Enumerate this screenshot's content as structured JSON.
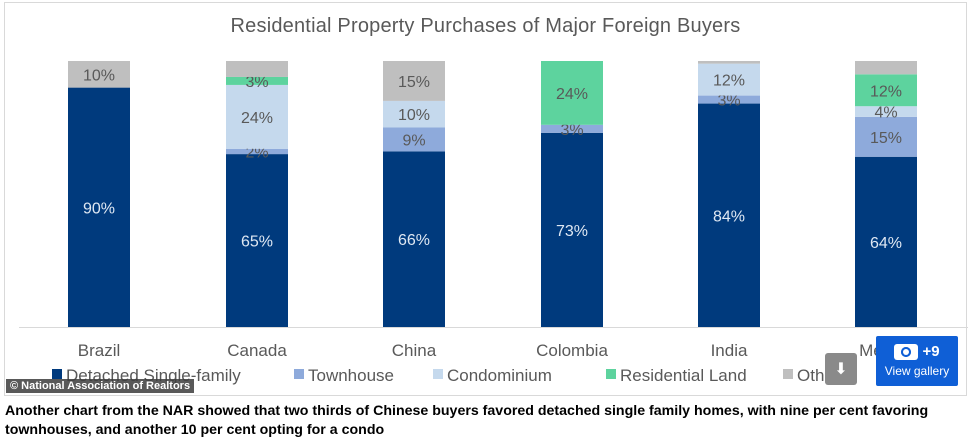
{
  "caption": "Another chart from the NAR showed that two thirds of Chinese buyers favored detached single family homes, with nine per cent favoring townhouses, and another 10 per cent opting for a condo",
  "credit": "© National Association of Realtors",
  "gallery": {
    "count": "+9",
    "label": "View gallery"
  },
  "icons": {
    "share": "share-icon",
    "camera": "camera-icon"
  },
  "chart_data": {
    "type": "bar",
    "stacked": true,
    "title": "Residential Property Purchases of Major Foreign Buyers",
    "xlabel": "",
    "ylabel": "",
    "ylim": [
      0,
      100
    ],
    "categories": [
      "Brazil",
      "Canada",
      "China",
      "Colombia",
      "India",
      "Mexico"
    ],
    "series": [
      {
        "name": "Detached Single-family",
        "color": "#003a7d",
        "values": [
          90,
          65,
          66,
          73,
          84,
          64
        ]
      },
      {
        "name": "Townhouse",
        "color": "#8eaadb",
        "values": [
          0,
          2,
          9,
          3,
          3,
          15
        ]
      },
      {
        "name": "Condominium",
        "color": "#c5d9ed",
        "values": [
          0,
          24,
          10,
          0,
          12,
          4
        ]
      },
      {
        "name": "Residential Land",
        "color": "#5dd39e",
        "values": [
          0,
          3,
          0,
          24,
          0,
          12
        ]
      },
      {
        "name": "Other",
        "color": "#bfbfbf",
        "values": [
          10,
          6,
          15,
          0,
          1,
          5
        ]
      }
    ],
    "data_labels": [
      [
        "90%",
        "65%",
        "66%",
        "73%",
        "84%",
        "64%"
      ],
      [
        "",
        "2%",
        "9%",
        "3%",
        "3%",
        "15%"
      ],
      [
        "",
        "24%",
        "10%",
        "",
        "12%",
        "4%"
      ],
      [
        "",
        "3%",
        "",
        "24%",
        "",
        "12%"
      ],
      [
        "10%",
        "",
        "15%",
        "",
        "",
        ""
      ]
    ],
    "legend_position": "bottom",
    "grid": false
  }
}
